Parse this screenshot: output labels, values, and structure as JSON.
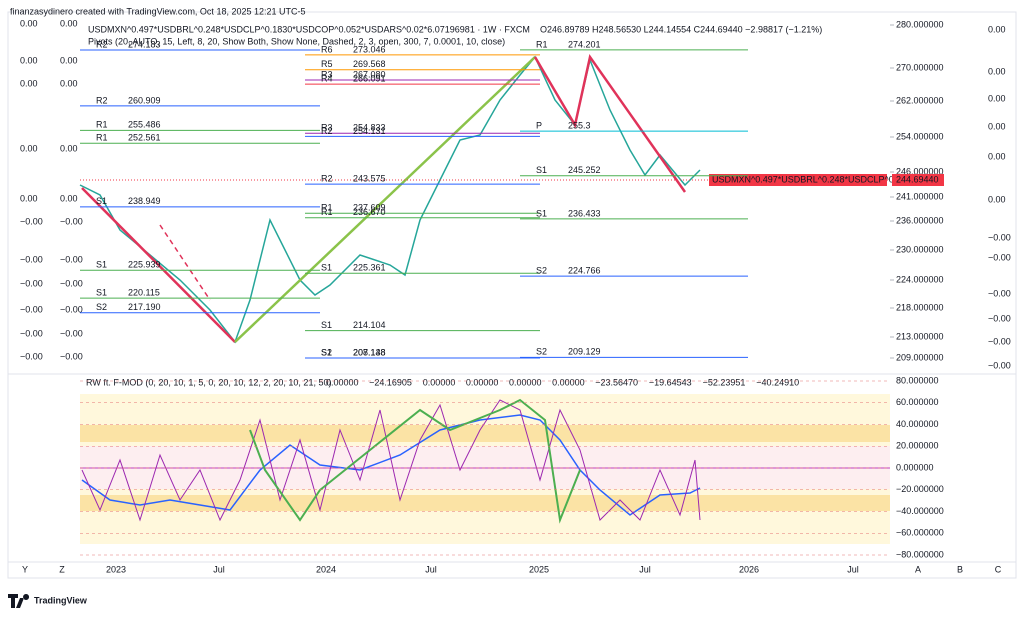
{
  "header": {
    "credit": "finanzasydinero created with TradingView.com, Oct 18, 2025 12:21 UTC-5",
    "symbol": "USDMXN^0.497*USDBRL^0.248*USDCLP^0.1830*USDCOP^0.052*USDARS^0.02*6.07196981 · 1W · FXCM",
    "ohlc": "O246.89789 H248.56530 L244.14554 C244.69440 −2.98817 (−1.21%)",
    "pivots": "Pivots (20, AUTO, 15, Left, 8, 20, Show Both, Show None, Dashed, 2, 3, open, 300, 7, 0.0001, 10, close)"
  },
  "price_axis": {
    "ticks": [
      {
        "value": 280,
        "label": "280.000000"
      },
      {
        "value": 270,
        "label": "270.000000"
      },
      {
        "value": 262,
        "label": "262.000000"
      },
      {
        "value": 254,
        "label": "254.000000"
      },
      {
        "value": 246,
        "label": "246.000000"
      },
      {
        "value": 241,
        "label": "241.000000"
      },
      {
        "value": 236,
        "label": "236.000000"
      },
      {
        "value": 230,
        "label": "230.000000"
      },
      {
        "value": 224,
        "label": "224.000000"
      },
      {
        "value": 218,
        "label": "218.000000"
      },
      {
        "value": 213,
        "label": "213.000000"
      },
      {
        "value": 209,
        "label": "209.000000"
      }
    ],
    "last_name": "USDMXN^0.497*USDBRL^0.248*USDCLP^0.18...",
    "last_value": "244.69440"
  },
  "pivot_periods": [
    {
      "levels": [
        {
          "name": "R2",
          "value": "274.183",
          "color": "#2962ff"
        },
        {
          "name": "R2",
          "value": "260.909",
          "color": "#2962ff"
        },
        {
          "name": "R1",
          "value": "255.486",
          "color": "#4caf50"
        },
        {
          "name": "R1",
          "value": "252.561",
          "color": "#4caf50"
        },
        {
          "name": "S1",
          "value": "238.949",
          "color": "#2962ff"
        },
        {
          "name": "S1",
          "value": "225.939",
          "color": "#4caf50"
        },
        {
          "name": "S1",
          "value": "220.115",
          "color": "#4caf50"
        },
        {
          "name": "S2",
          "value": "217.190",
          "color": "#2962ff"
        }
      ]
    },
    {
      "levels": [
        {
          "name": "R6",
          "value": "273.046",
          "color": "#ff9800"
        },
        {
          "name": "R5",
          "value": "269.568",
          "color": "#ff9800"
        },
        {
          "name": "R3",
          "value": "267.080",
          "color": "#9c27b0"
        },
        {
          "name": "R4",
          "value": "266.091",
          "color": "#f23645"
        },
        {
          "name": "R3",
          "value": "254.833",
          "color": "#9c27b0"
        },
        {
          "name": "R2",
          "value": "254.131",
          "color": "#2962ff"
        },
        {
          "name": "R2",
          "value": "243.575",
          "color": "#2962ff"
        },
        {
          "name": "R1",
          "value": "237.609",
          "color": "#4caf50"
        },
        {
          "name": "R1",
          "value": "236.670",
          "color": "#4caf50"
        },
        {
          "name": "S1",
          "value": "225.361",
          "color": "#4caf50"
        },
        {
          "name": "S1",
          "value": "214.104",
          "color": "#4caf50"
        },
        {
          "name": "S1",
          "value": "208.138",
          "color": "#4caf50"
        },
        {
          "name": "S2",
          "value": "207.148",
          "color": "#2962ff"
        }
      ]
    },
    {
      "levels": [
        {
          "name": "R1",
          "value": "274.201",
          "color": "#4caf50"
        },
        {
          "name": "P",
          "value": "255.3",
          "color": "#00bcd4"
        },
        {
          "name": "S1",
          "value": "245.252",
          "color": "#4caf50"
        },
        {
          "name": "S1",
          "value": "236.433",
          "color": "#4caf50"
        },
        {
          "name": "S2",
          "value": "224.766",
          "color": "#2962ff"
        },
        {
          "name": "S2",
          "value": "209.129",
          "color": "#2962ff"
        }
      ]
    }
  ],
  "indicator": {
    "title": "RW ft. F-MOD (0, 20, 10, 1, 5, 0, 20, 10, 12, 2, 20, 10, 21, 50)",
    "readouts": [
      {
        "text": "0.00000",
        "color": "#ff9800"
      },
      {
        "text": "−24.16905",
        "color": "#9c27b0"
      },
      {
        "text": "0.00000",
        "color": "#ff9800"
      },
      {
        "text": "0.00000",
        "color": "#9c27b0"
      },
      {
        "text": "0.00000",
        "color": "#ff9800"
      },
      {
        "text": "0.00000",
        "color": "#2962ff"
      },
      {
        "text": "−23.56470",
        "color": "#4caf50"
      },
      {
        "text": "−19.64543",
        "color": "#f23645"
      },
      {
        "text": "−52.23951",
        "color": "#9c27b0"
      },
      {
        "text": "−40.24910",
        "color": "#ff9800"
      }
    ],
    "ticks": [
      {
        "value": 80,
        "label": "80.000000"
      },
      {
        "value": 60,
        "label": "60.000000"
      },
      {
        "value": 40,
        "label": "40.000000"
      },
      {
        "value": 20,
        "label": "20.000000"
      },
      {
        "value": 0,
        "label": "0.000000"
      },
      {
        "value": -20,
        "label": "−20.000000"
      },
      {
        "value": -40,
        "label": "−40.000000"
      },
      {
        "value": -60,
        "label": "−60.000000"
      },
      {
        "value": -80,
        "label": "−80.000000"
      }
    ]
  },
  "overlay_scales": {
    "positive": "0.00",
    "negative": "−0.00"
  },
  "time_axis": [
    "2023",
    "Jul",
    "2024",
    "Jul",
    "2025",
    "Jul",
    "2026",
    "Jul"
  ],
  "corner_letters": [
    "Y",
    "Z",
    "A",
    "B",
    "C"
  ],
  "logo": "TradingView"
}
